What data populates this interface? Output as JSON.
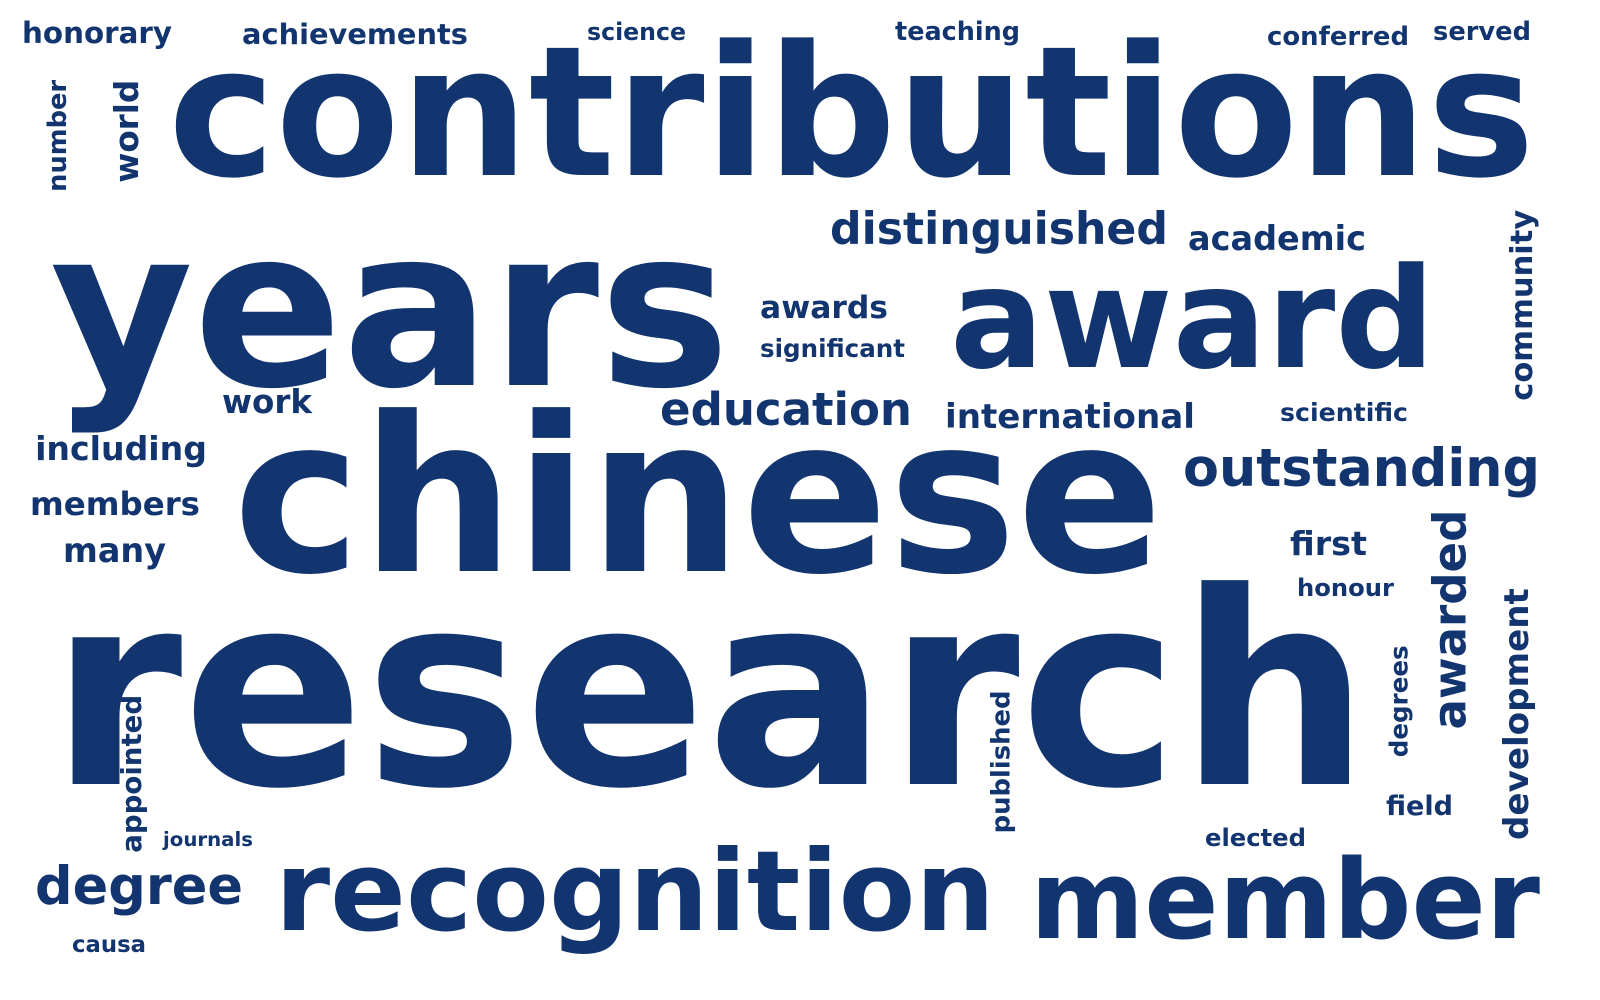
{
  "word_cloud": {
    "color": "#12346f",
    "words": [
      {
        "text": "research",
        "orientation": "horizontal"
      },
      {
        "text": "chinese",
        "orientation": "horizontal"
      },
      {
        "text": "years",
        "orientation": "horizontal"
      },
      {
        "text": "contributions",
        "orientation": "horizontal"
      },
      {
        "text": "award",
        "orientation": "horizontal"
      },
      {
        "text": "member",
        "orientation": "horizontal"
      },
      {
        "text": "recognition",
        "orientation": "horizontal"
      },
      {
        "text": "degree",
        "orientation": "horizontal"
      },
      {
        "text": "distinguished",
        "orientation": "horizontal"
      },
      {
        "text": "outstanding",
        "orientation": "horizontal"
      },
      {
        "text": "education",
        "orientation": "horizontal"
      },
      {
        "text": "awarded",
        "orientation": "vertical"
      },
      {
        "text": "international",
        "orientation": "horizontal"
      },
      {
        "text": "academic",
        "orientation": "horizontal"
      },
      {
        "text": "including",
        "orientation": "horizontal"
      },
      {
        "text": "achievements",
        "orientation": "horizontal"
      },
      {
        "text": "development",
        "orientation": "vertical"
      },
      {
        "text": "community",
        "orientation": "vertical"
      },
      {
        "text": "members",
        "orientation": "horizontal"
      },
      {
        "text": "first",
        "orientation": "horizontal"
      },
      {
        "text": "honorary",
        "orientation": "horizontal"
      },
      {
        "text": "awards",
        "orientation": "horizontal"
      },
      {
        "text": "conferred",
        "orientation": "horizontal"
      },
      {
        "text": "work",
        "orientation": "horizontal"
      },
      {
        "text": "many",
        "orientation": "horizontal"
      },
      {
        "text": "world",
        "orientation": "vertical"
      },
      {
        "text": "appointed",
        "orientation": "vertical"
      },
      {
        "text": "teaching",
        "orientation": "horizontal"
      },
      {
        "text": "served",
        "orientation": "horizontal"
      },
      {
        "text": "field",
        "orientation": "horizontal"
      },
      {
        "text": "honour",
        "orientation": "horizontal"
      },
      {
        "text": "significant",
        "orientation": "horizontal"
      },
      {
        "text": "published",
        "orientation": "vertical"
      },
      {
        "text": "elected",
        "orientation": "horizontal"
      },
      {
        "text": "science",
        "orientation": "horizontal"
      },
      {
        "text": "scientific",
        "orientation": "horizontal"
      },
      {
        "text": "degrees",
        "orientation": "vertical"
      },
      {
        "text": "number",
        "orientation": "vertical"
      },
      {
        "text": "causa",
        "orientation": "horizontal"
      },
      {
        "text": "journals",
        "orientation": "horizontal"
      }
    ]
  }
}
